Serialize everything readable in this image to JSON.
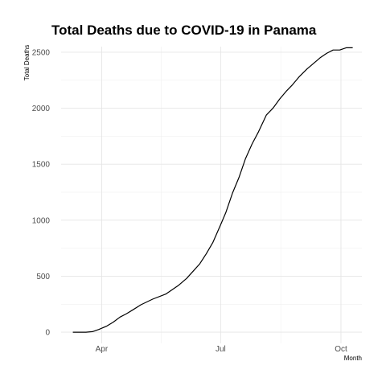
{
  "chart_data": {
    "type": "line",
    "title": "Total Deaths due to COVID-19 in Panama",
    "xlabel": "Month",
    "ylabel": "Total Deaths",
    "x_type": "date",
    "xlim": [
      "2020-03-01",
      "2020-10-17"
    ],
    "ylim": [
      -100,
      2550
    ],
    "x_ticks": [
      {
        "date": "2020-04-01",
        "label": "Apr"
      },
      {
        "date": "2020-07-01",
        "label": "Jul"
      },
      {
        "date": "2020-10-01",
        "label": "Oct"
      }
    ],
    "y_ticks": [
      0,
      500,
      1000,
      1500,
      2000,
      2500
    ],
    "grid": true,
    "legend": "none",
    "series": [
      {
        "x": [
          "2020-03-10",
          "2020-03-20",
          "2020-03-25",
          "2020-03-30",
          "2020-04-05",
          "2020-04-10",
          "2020-04-15",
          "2020-04-20",
          "2020-04-25",
          "2020-05-01",
          "2020-05-10",
          "2020-05-20",
          "2020-05-30",
          "2020-06-05",
          "2020-06-10",
          "2020-06-15",
          "2020-06-20",
          "2020-06-25",
          "2020-07-01",
          "2020-07-05",
          "2020-07-10",
          "2020-07-15",
          "2020-07-20",
          "2020-07-25",
          "2020-07-30",
          "2020-08-05",
          "2020-08-10",
          "2020-08-15",
          "2020-08-20",
          "2020-08-25",
          "2020-08-30",
          "2020-09-05",
          "2020-09-10",
          "2020-09-15",
          "2020-09-20",
          "2020-09-25",
          "2020-09-30",
          "2020-10-05",
          "2020-10-10"
        ],
        "y": [
          0,
          0,
          5,
          25,
          55,
          90,
          135,
          165,
          200,
          245,
          295,
          340,
          420,
          480,
          545,
          610,
          700,
          800,
          960,
          1070,
          1240,
          1380,
          1550,
          1680,
          1790,
          1940,
          2000,
          2080,
          2150,
          2210,
          2280,
          2350,
          2400,
          2450,
          2490,
          2520,
          2520,
          2540,
          2540
        ],
        "color": "#000000"
      }
    ]
  }
}
